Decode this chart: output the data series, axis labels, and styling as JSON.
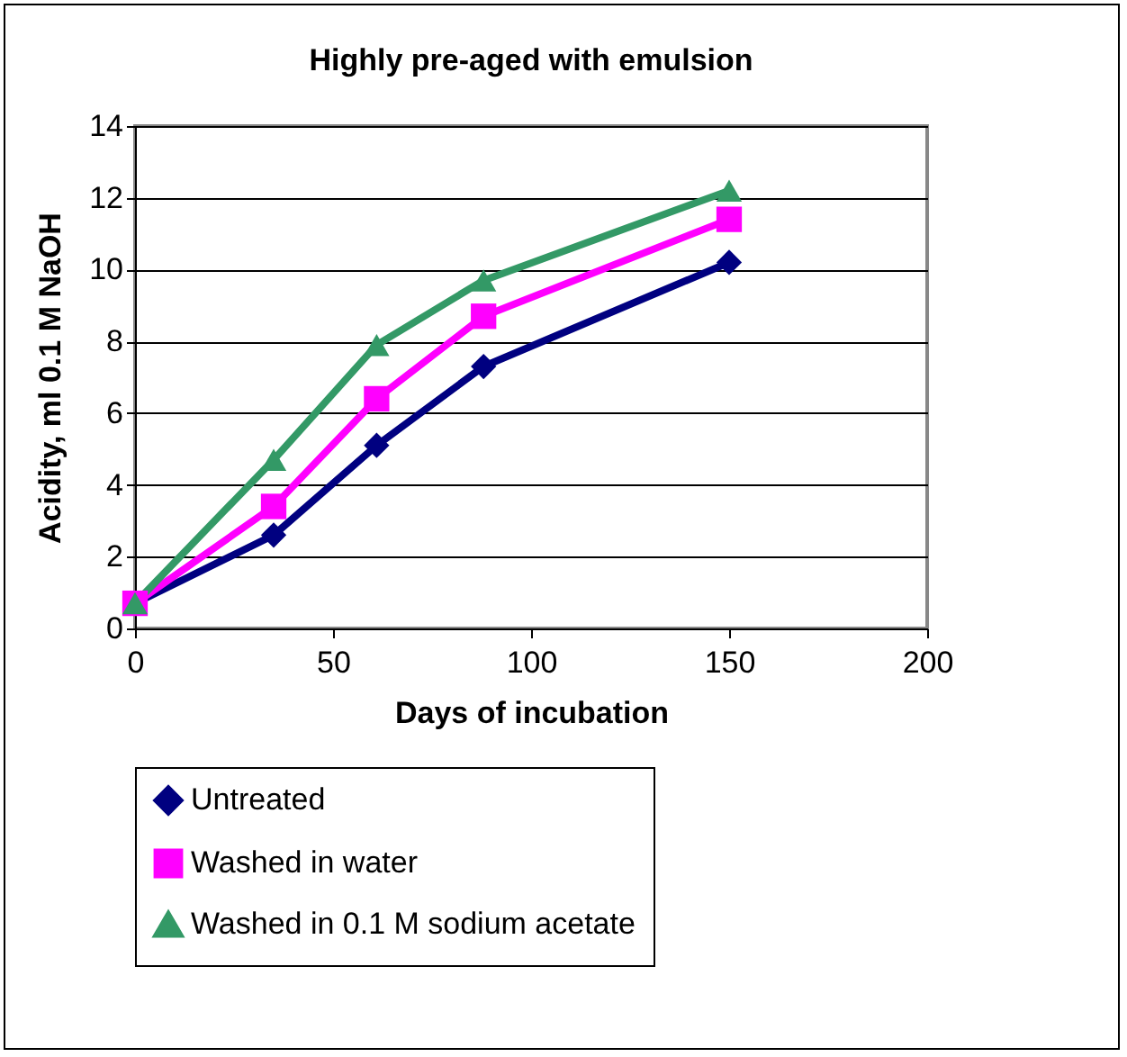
{
  "chart_data": {
    "type": "line",
    "title": "Highly pre-aged with emulsion",
    "xlabel": "Days of incubation",
    "ylabel": "Acidity, ml 0.1 M NaOH",
    "x": [
      0,
      35,
      61,
      88,
      150
    ],
    "series": [
      {
        "name": "Untreated",
        "color": "#000080",
        "marker": "diamond",
        "values": [
          0.7,
          2.6,
          5.1,
          7.3,
          10.2
        ]
      },
      {
        "name": "Washed in water",
        "color": "#ff00ff",
        "marker": "square",
        "values": [
          0.7,
          3.4,
          6.4,
          8.7,
          11.4
        ]
      },
      {
        "name": "Washed in 0.1 M sodium acetate",
        "color": "#339966",
        "marker": "triangle",
        "values": [
          0.7,
          4.7,
          7.9,
          9.7,
          12.2
        ]
      }
    ],
    "xlim": [
      0,
      200
    ],
    "xticks": [
      0,
      50,
      100,
      150,
      200
    ],
    "ylim": [
      0,
      14
    ],
    "yticks": [
      0,
      2,
      4,
      6,
      8,
      10,
      12,
      14
    ],
    "grid": "y",
    "legend": "bottom",
    "line_style": "solid"
  }
}
